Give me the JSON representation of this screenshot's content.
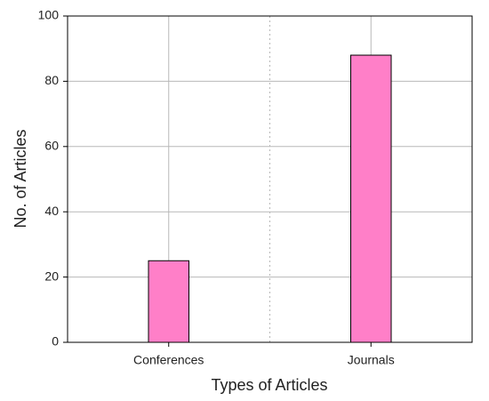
{
  "chart_data": {
    "type": "bar",
    "x_label": "Types of Articles",
    "y_label": "No. of Articles",
    "categories": [
      "Conferences",
      "Journals"
    ],
    "values": [
      25,
      88
    ],
    "color": "#ff7fc8",
    "ylim": [
      0,
      100
    ],
    "yticks": [
      0,
      20,
      40,
      60,
      80,
      100
    ],
    "grid": true
  }
}
